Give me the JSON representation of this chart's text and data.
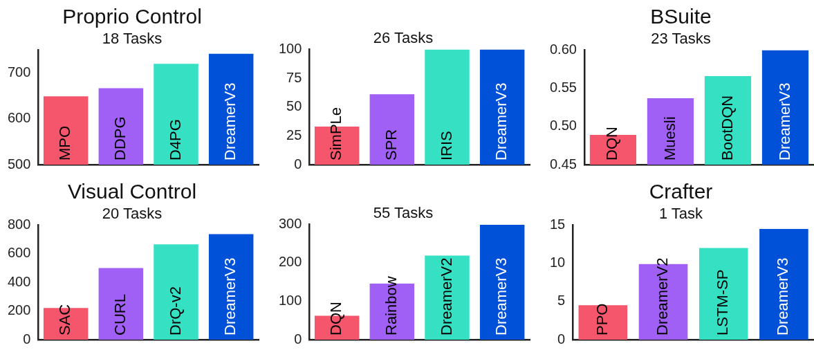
{
  "chart_data": [
    {
      "type": "bar",
      "title": "Proprio Control",
      "subtitle": "18 Tasks",
      "categories": [
        "MPO",
        "DDPG",
        "D4PG",
        "DreamerV3"
      ],
      "values": [
        649,
        667,
        720,
        742
      ],
      "colors": [
        "#f5566b",
        "#a05ff5",
        "#35e0c3",
        "#0050d8"
      ],
      "ylim": [
        500,
        750
      ],
      "yticks": [
        500,
        600,
        700
      ],
      "grid": false,
      "legend": false
    },
    {
      "type": "bar",
      "subtitle": "26 Tasks",
      "categories": [
        "SimPLe",
        "SPR",
        "IRIS",
        "DreamerV3"
      ],
      "values": [
        33,
        61,
        100,
        100
      ],
      "colors": [
        "#f5566b",
        "#a05ff5",
        "#35e0c3",
        "#0050d8"
      ],
      "ylim": [
        0,
        100
      ],
      "yticks": [
        0,
        25,
        50,
        75,
        100
      ],
      "grid": false,
      "legend": false
    },
    {
      "type": "bar",
      "title": "BSuite",
      "subtitle": "23 Tasks",
      "categories": [
        "DQN",
        "Muesli",
        "BootDQN",
        "DreamerV3"
      ],
      "values": [
        0.489,
        0.537,
        0.566,
        0.6
      ],
      "colors": [
        "#f5566b",
        "#a05ff5",
        "#35e0c3",
        "#0050d8"
      ],
      "ylim": [
        0.45,
        0.6
      ],
      "yticks": [
        {
          "value": 0.45,
          "label": "0.45"
        },
        {
          "value": 0.5,
          "label": "0.50"
        },
        {
          "value": 0.55,
          "label": "0.55"
        },
        {
          "value": 0.6,
          "label": "0.60"
        }
      ],
      "grid": false,
      "legend": false
    },
    {
      "type": "bar",
      "title": "Visual Control",
      "subtitle": "20 Tasks",
      "categories": [
        "SAC",
        "CURL",
        "DrQ-v2",
        "DreamerV3"
      ],
      "values": [
        221,
        500,
        665,
        737
      ],
      "colors": [
        "#f5566b",
        "#a05ff5",
        "#35e0c3",
        "#0050d8"
      ],
      "ylim": [
        0,
        800
      ],
      "yticks": [
        0,
        200,
        400,
        600,
        800
      ],
      "grid": false,
      "legend": false
    },
    {
      "type": "bar",
      "subtitle": "55 Tasks",
      "categories": [
        "DQN",
        "Rainbow",
        "DreamerV2",
        "DreamerV3"
      ],
      "values": [
        62,
        146,
        219,
        299
      ],
      "colors": [
        "#f5566b",
        "#a05ff5",
        "#35e0c3",
        "#0050d8"
      ],
      "ylim": [
        0,
        300
      ],
      "yticks": [
        0,
        100,
        200,
        300
      ],
      "grid": false,
      "legend": false
    },
    {
      "type": "bar",
      "title": "Crafter",
      "subtitle": "1 Task",
      "categories": [
        "PPO",
        "DreamerV2",
        "LSTM-SP",
        "DreamerV3"
      ],
      "values": [
        4.5,
        9.9,
        12.0,
        14.5
      ],
      "colors": [
        "#f5566b",
        "#a05ff5",
        "#35e0c3",
        "#0050d8"
      ],
      "ylim": [
        0,
        15
      ],
      "yticks": [
        0,
        5,
        10,
        15
      ],
      "grid": false,
      "legend": false
    }
  ]
}
